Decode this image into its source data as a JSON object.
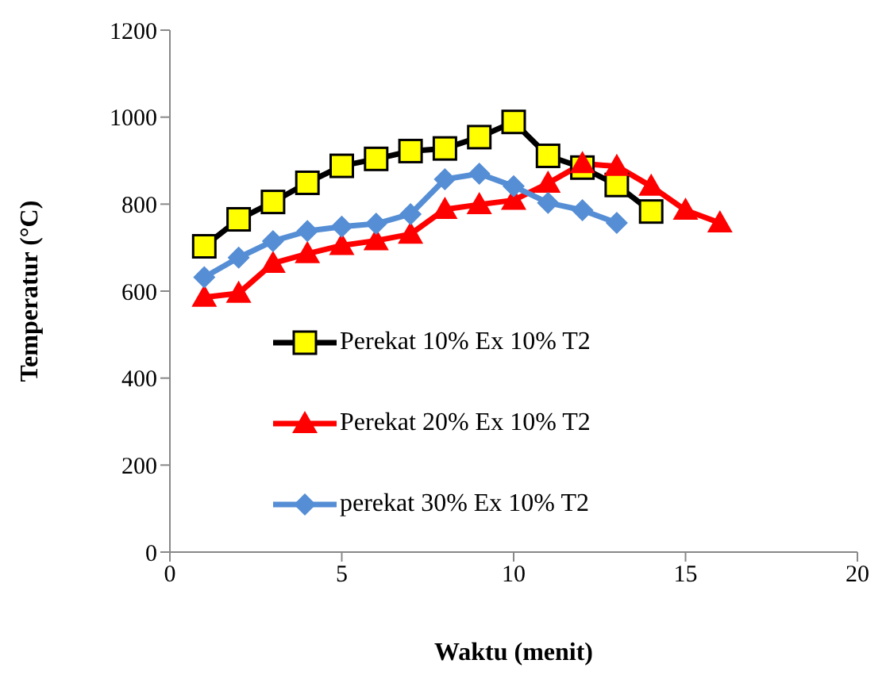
{
  "chart_data": {
    "type": "line",
    "xlabel": "Waktu (menit)",
    "ylabel": "Temperatur (°C)",
    "xlim": [
      0,
      20
    ],
    "xticks": [
      0,
      5,
      10,
      15,
      20
    ],
    "ylim": [
      0,
      1200
    ],
    "yticks": [
      0,
      200,
      400,
      600,
      800,
      1000,
      1200
    ],
    "legend": "bottom",
    "line_style": "solid",
    "series": [
      {
        "name": "Perekat 10% Ex 10% T2",
        "color": "#000000",
        "marker": "square",
        "x": [
          1,
          2,
          3,
          4,
          5,
          6,
          7,
          8,
          9,
          10,
          11,
          12,
          13,
          14
        ],
        "values": [
          703,
          765,
          805,
          849,
          888,
          904,
          922,
          928,
          954,
          989,
          911,
          884,
          844,
          783
        ]
      },
      {
        "name": "Perekat 20% Ex 10% T2",
        "color": "#ff0000",
        "marker": "triangle",
        "x": [
          1,
          2,
          3,
          4,
          5,
          6,
          7,
          8,
          9,
          10,
          11,
          12,
          13,
          14,
          15,
          16
        ],
        "values": [
          586,
          595,
          664,
          686,
          705,
          716,
          731,
          788,
          799,
          809,
          848,
          893,
          887,
          841,
          786,
          757
        ]
      },
      {
        "name": "perekat 30% Ex 10% T2",
        "color": "#558ed5",
        "marker": "diamond",
        "x": [
          1,
          2,
          3,
          4,
          5,
          6,
          7,
          8,
          9,
          10,
          11,
          12,
          13
        ],
        "values": [
          632,
          677,
          715,
          738,
          748,
          755,
          777,
          857,
          870,
          841,
          803,
          786,
          757
        ]
      }
    ]
  }
}
